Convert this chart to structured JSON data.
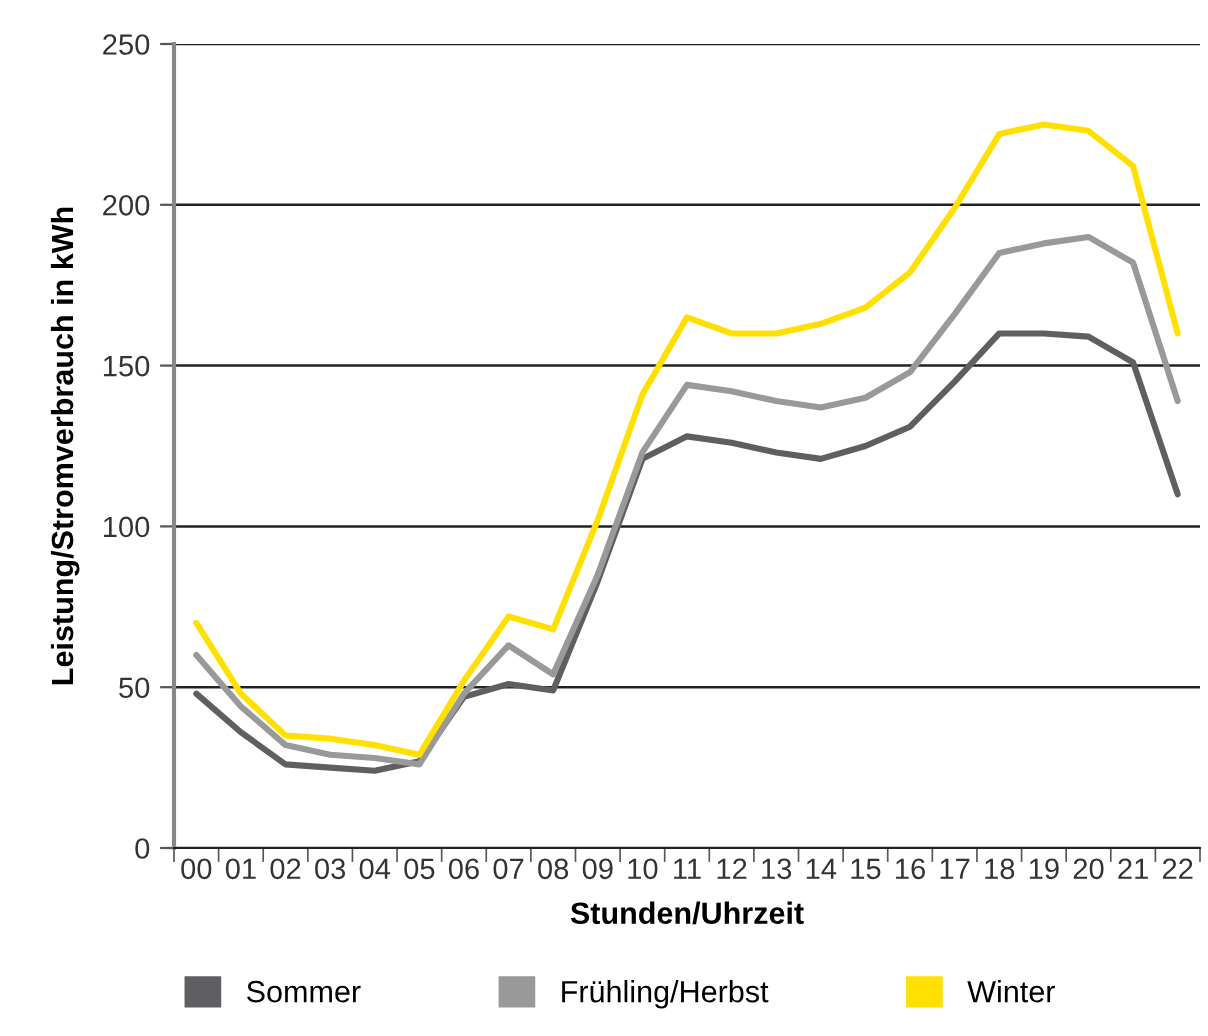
{
  "chart_data": {
    "type": "line",
    "xlabel": "Stunden/Uhrzeit",
    "ylabel": "Leistung/Stromverbrauch in kWh",
    "categories": [
      "00",
      "01",
      "02",
      "03",
      "04",
      "05",
      "06",
      "07",
      "08",
      "09",
      "10",
      "11",
      "12",
      "13",
      "14",
      "15",
      "16",
      "17",
      "18",
      "19",
      "20",
      "21",
      "22"
    ],
    "series": [
      {
        "name": "Sommer",
        "color": "#5f5f63",
        "values": [
          48,
          36,
          26,
          25,
          24,
          27,
          47,
          51,
          49,
          83,
          121,
          128,
          126,
          123,
          121,
          125,
          131,
          145,
          160,
          160,
          159,
          151,
          110
        ]
      },
      {
        "name": "Frühling/Herbst",
        "color": "#999999",
        "values": [
          60,
          44,
          32,
          29,
          28,
          26,
          48,
          63,
          54,
          85,
          123,
          144,
          142,
          139,
          137,
          140,
          148,
          166,
          185,
          188,
          190,
          182,
          139
        ]
      },
      {
        "name": "Winter",
        "color": "#ffe000",
        "values": [
          70,
          48,
          35,
          34,
          32,
          29,
          52,
          72,
          68,
          102,
          141,
          165,
          160,
          160,
          163,
          168,
          179,
          199,
          222,
          225,
          223,
          212,
          160
        ]
      }
    ],
    "ylim": [
      0,
      250
    ],
    "yticks": [
      0,
      50,
      100,
      150,
      200,
      250
    ],
    "grid": "y",
    "legend": "bottom",
    "marker": "none",
    "line_style": "solid"
  }
}
